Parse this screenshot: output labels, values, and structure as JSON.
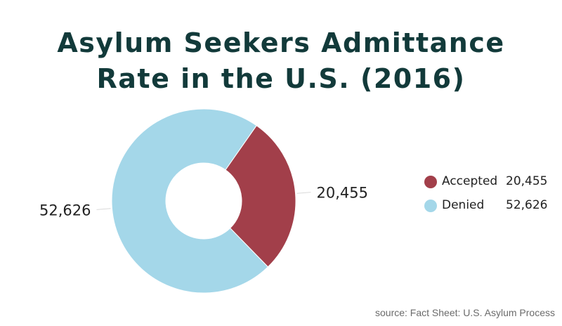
{
  "chart_data": {
    "type": "pie",
    "style": "donut",
    "title": "Asylum Seekers Admittance Rate in the U.S. (2016)",
    "title_lines": [
      "Asylum Seekers Admittance",
      "Rate in the U.S. (2016)"
    ],
    "series": [
      {
        "name": "Accepted",
        "value": 20455,
        "label": "20,455",
        "color": "#a23f4a"
      },
      {
        "name": "Denied",
        "value": 52626,
        "label": "52,626",
        "color": "#a4d7e9"
      }
    ],
    "legend_position": "right",
    "source": "source: Fact Sheet: U.S. Asylum Process"
  }
}
